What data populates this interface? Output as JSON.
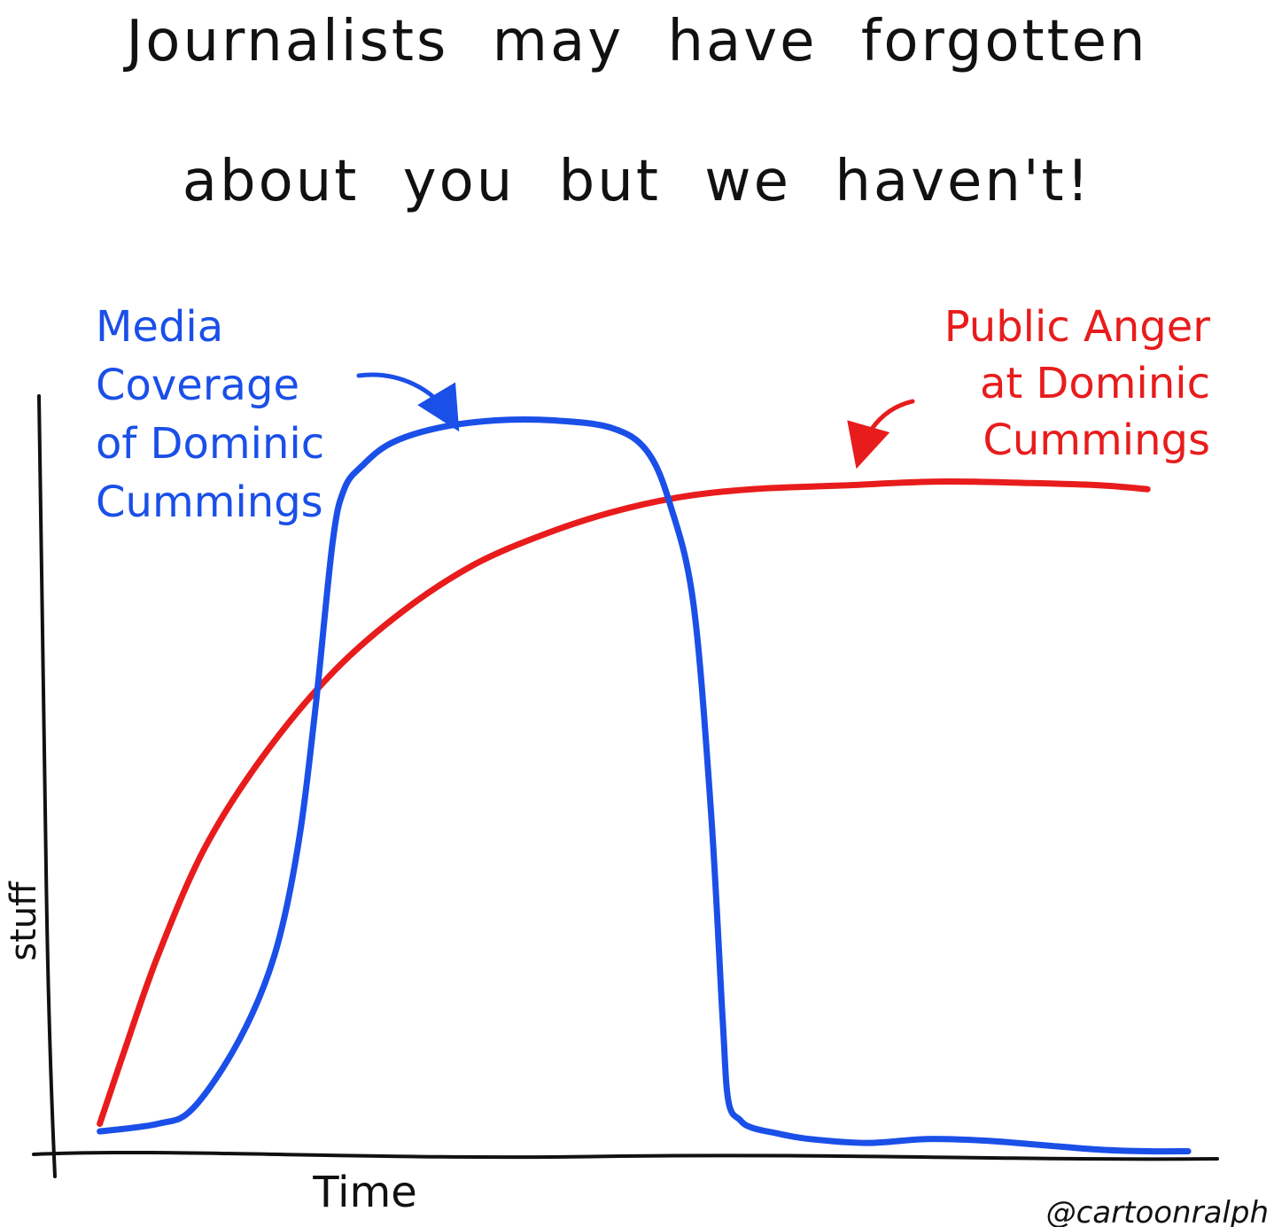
{
  "title": {
    "line1": "Journalists may have forgotten",
    "line2": "about you but we haven't!"
  },
  "credit": "@cartoonralph",
  "colors": {
    "ink": "#111111",
    "media": "#1a4fe8",
    "anger": "#e81c1c"
  },
  "chart_data": {
    "type": "line",
    "xlabel": "Time",
    "ylabel": "stuff",
    "xlim": [
      0,
      100
    ],
    "ylim": [
      0,
      100
    ],
    "grid": false,
    "series": [
      {
        "name": "Media Coverage of Dominic Cummings",
        "label_lines": [
          "Media",
          "Coverage",
          "of Dominic",
          "Cummings"
        ],
        "color": "#1a4fe8",
        "x": [
          4,
          9,
          12,
          16,
          19,
          21,
          22.5,
          24,
          25,
          26.5,
          29,
          33,
          38,
          43,
          48,
          51,
          53,
          55,
          56.5,
          57.5,
          58,
          59,
          60,
          62,
          65,
          70,
          75,
          80,
          85,
          90,
          94,
          97.5
        ],
        "y": [
          3,
          4,
          6,
          15,
          26,
          40,
          58,
          80,
          87,
          90,
          93,
          95,
          96,
          96,
          95,
          92,
          85,
          72,
          45,
          18,
          7,
          4.5,
          3.5,
          2.8,
          2,
          1.5,
          2,
          1.8,
          1.2,
          0.6,
          0.4,
          0.4
        ]
      },
      {
        "name": "Public Anger at Dominic Cummings",
        "label_lines": [
          "Public Anger",
          "at Dominic",
          "Cummings"
        ],
        "color": "#e81c1c",
        "x": [
          4,
          6,
          9,
          13,
          18,
          24,
          30,
          36,
          42,
          48,
          54,
          60,
          68,
          76,
          84,
          90,
          94
        ],
        "y": [
          4,
          13,
          26,
          40,
          52,
          63,
          71,
          77,
          81,
          84,
          86,
          87,
          87.5,
          88,
          87.8,
          87.5,
          87
        ]
      }
    ]
  }
}
